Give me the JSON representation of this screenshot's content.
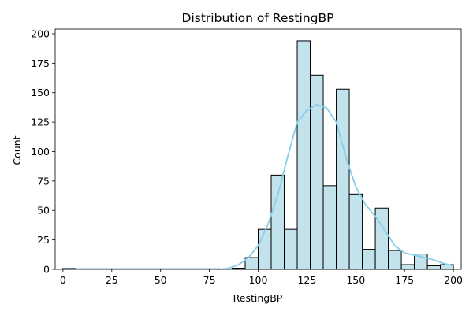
{
  "chart_data": {
    "type": "bar",
    "subtype": "histogram-with-kde",
    "title": "Distribution of RestingBP",
    "xlabel": "RestingBP",
    "ylabel": "Count",
    "xlim": [
      -4,
      204
    ],
    "ylim": [
      0,
      204
    ],
    "x_ticks": [
      0,
      25,
      50,
      75,
      100,
      125,
      150,
      175,
      200
    ],
    "y_ticks": [
      0,
      25,
      50,
      75,
      100,
      125,
      150,
      175,
      200
    ],
    "grid": false,
    "bar_color": "#add8e6",
    "bar_edge_color": "#000000",
    "kde_color": "#87ceeb",
    "bin_edges": [
      0,
      6.667,
      13.333,
      20,
      26.667,
      33.333,
      40,
      46.667,
      53.333,
      60,
      66.667,
      73.333,
      80,
      86.667,
      93.333,
      100,
      106.667,
      113.333,
      120,
      126.667,
      133.333,
      140,
      146.667,
      153.333,
      160,
      166.667,
      173.333,
      180,
      186.667,
      193.333,
      200
    ],
    "values": [
      1,
      0,
      0,
      0,
      0,
      0,
      0,
      0,
      0,
      0,
      0,
      0,
      0,
      1,
      10,
      34,
      80,
      34,
      194,
      165,
      71,
      153,
      64,
      17,
      52,
      16,
      4,
      13,
      3,
      4
    ],
    "kde": {
      "x": [
        80,
        85,
        90,
        95,
        100,
        105,
        110,
        115,
        120,
        125,
        130,
        135,
        140,
        145,
        150,
        155,
        160,
        165,
        170,
        175,
        180,
        185,
        190,
        195,
        200
      ],
      "y": [
        0,
        1,
        4,
        10,
        20,
        38,
        63,
        95,
        125,
        135,
        140,
        137,
        125,
        95,
        70,
        55,
        45,
        33,
        20,
        14,
        12,
        10,
        8,
        5,
        3
      ]
    }
  }
}
